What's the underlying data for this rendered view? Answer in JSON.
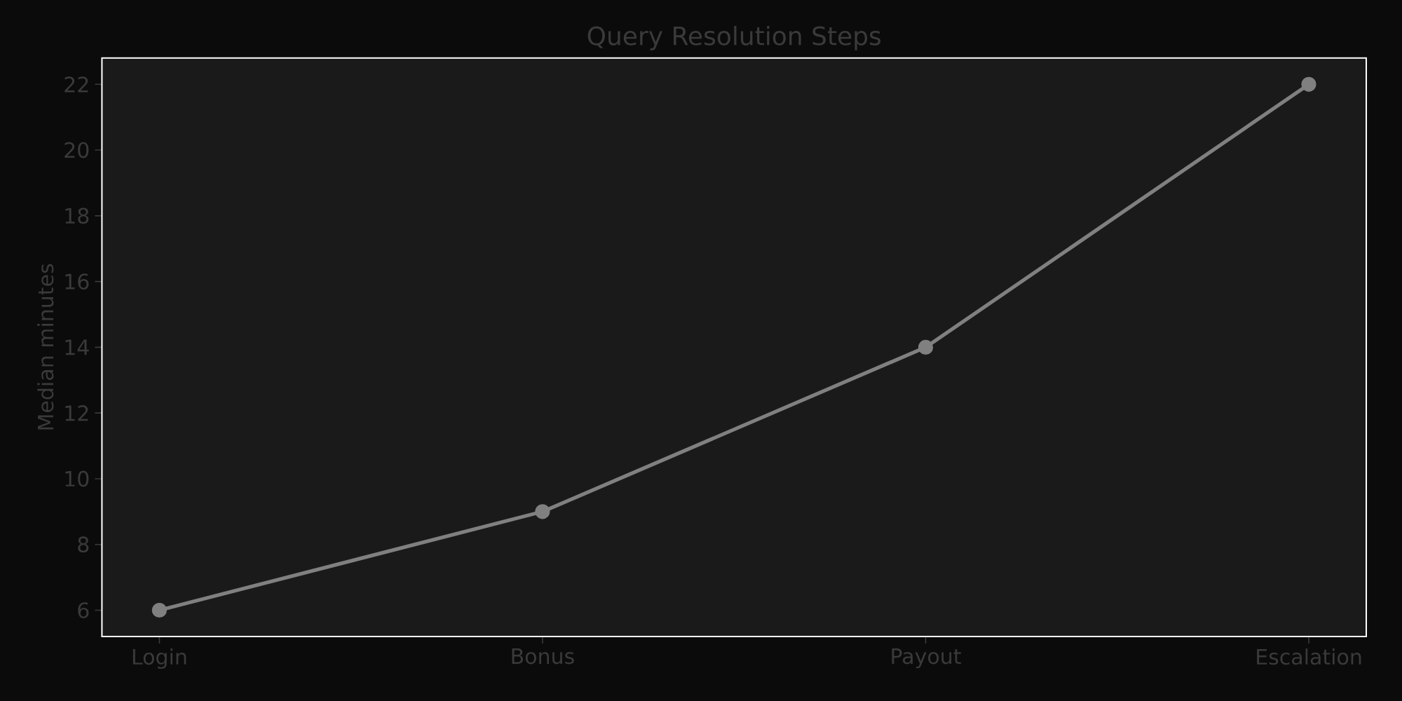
{
  "chart_data": {
    "type": "line",
    "title": "Query Resolution Steps",
    "ylabel": "Median minutes",
    "categories": [
      "Login",
      "Bonus",
      "Payout",
      "Escalation"
    ],
    "series": [
      {
        "color": "#808080",
        "values": [
          6,
          9,
          14,
          22
        ]
      }
    ],
    "ylim": [
      5.2,
      22.8
    ],
    "yticks": [
      6,
      8,
      10,
      12,
      14,
      16,
      18,
      20,
      22
    ],
    "marker": "circle",
    "line_style": "solid"
  }
}
